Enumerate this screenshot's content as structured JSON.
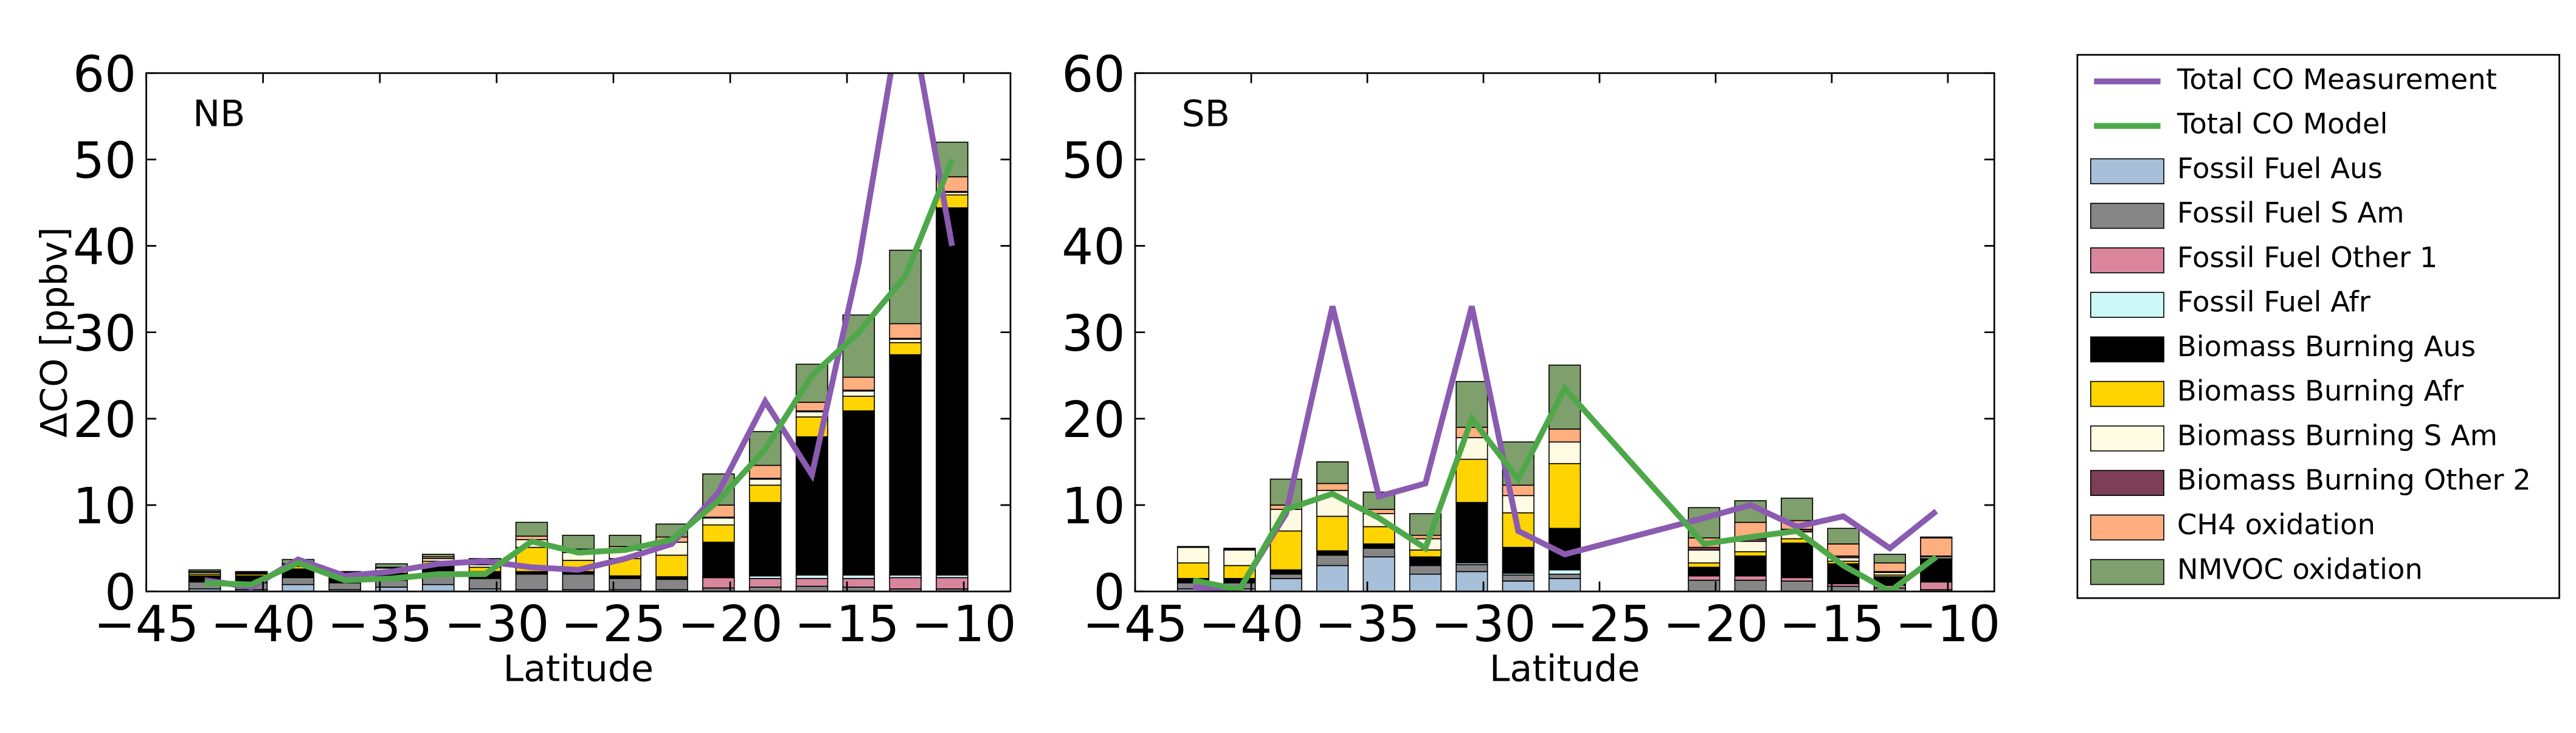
{
  "chart_data": [
    {
      "type": "bar",
      "annotation": "NB",
      "ylabel": "ΔCO [ppbv]",
      "xlabel": "Latitude",
      "x": [
        -42.5,
        -40.5,
        -38.5,
        -36.5,
        -34.5,
        -32.5,
        -30.5,
        -28.5,
        -26.5,
        -24.5,
        -22.5,
        -20.5,
        -18.5,
        -16.5,
        -14.5,
        -12.5,
        -10.5
      ],
      "xlim": [
        -45,
        -8
      ],
      "ylim": [
        0,
        60
      ],
      "xticks": [
        {
          "value": -45,
          "label": "−45"
        },
        {
          "value": -40,
          "label": "−40"
        },
        {
          "value": -35,
          "label": "−35"
        },
        {
          "value": -30,
          "label": "−30"
        },
        {
          "value": -25,
          "label": "−25"
        },
        {
          "value": -20,
          "label": "−20"
        },
        {
          "value": -15,
          "label": "−15"
        },
        {
          "value": -10,
          "label": "−10"
        }
      ],
      "yticks": [
        0,
        10,
        20,
        30,
        40,
        50,
        60
      ],
      "series": [
        {
          "name": "Total CO Measurement",
          "type": "line",
          "color": "#8a5bb0",
          "values": [
            1.3,
            0.5,
            3.7,
            1.8,
            2.3,
            3.2,
            3.5,
            2.8,
            2.5,
            3.8,
            5.5,
            11.5,
            22,
            13.5,
            38,
            70,
            40
          ]
        },
        {
          "name": "Total CO Model",
          "type": "line",
          "color": "#4ea84a",
          "values": [
            1.0,
            0.8,
            3.3,
            1.3,
            1.5,
            2.0,
            2.0,
            5.8,
            4.5,
            4.8,
            6.0,
            10.5,
            16.5,
            25,
            30,
            36.5,
            50
          ]
        },
        {
          "name": "Fossil Fuel Aus",
          "type": "bar",
          "color": "#a7bfd9",
          "values": [
            0.3,
            0.2,
            0.8,
            0.2,
            0.5,
            0.8,
            0.3,
            0.2,
            0.2,
            0.2,
            0.2,
            0,
            0,
            0,
            0,
            0,
            0
          ]
        },
        {
          "name": "Fossil Fuel S Am",
          "type": "bar",
          "color": "#868686",
          "values": [
            0.8,
            0.8,
            0.8,
            0.8,
            0.8,
            1,
            1.2,
            1.8,
            1.8,
            1.3,
            1.2,
            0.4,
            0.5,
            0.6,
            0.5,
            0.3,
            0.3
          ]
        },
        {
          "name": "Fossil Fuel Other 1",
          "type": "bar",
          "color": "#d9869c",
          "values": [
            0,
            0,
            0,
            0,
            0,
            0,
            0,
            0,
            0,
            0,
            0,
            1.2,
            1,
            0.9,
            1,
            1.3,
            1.3
          ]
        },
        {
          "name": "Fossil Fuel Afr",
          "type": "bar",
          "color": "#ccf8f8",
          "values": [
            0,
            0,
            0,
            0,
            0,
            0,
            0,
            0,
            0,
            0,
            0,
            0.1,
            0.3,
            0.4,
            0.4,
            0.3,
            0.3
          ]
        },
        {
          "name": "Biomass Burning Aus",
          "type": "bar",
          "color": "#000000",
          "values": [
            0.7,
            0.8,
            1.0,
            0.8,
            0.8,
            1.2,
            0.8,
            0.3,
            0.3,
            0.3,
            0.3,
            4,
            8.5,
            16,
            19,
            25.5,
            42.5
          ]
        },
        {
          "name": "Biomass Burning Afr",
          "type": "bar",
          "color": "#ffd400",
          "values": [
            0.2,
            0.2,
            0.3,
            0.2,
            0.3,
            0.5,
            0.5,
            2.8,
            1.3,
            2,
            2.5,
            2,
            2,
            2.3,
            1.7,
            1.4,
            1.5
          ]
        },
        {
          "name": "Biomass Burning S Am",
          "type": "bar",
          "color": "#fffbe3",
          "values": [
            0.2,
            0.1,
            0.2,
            0.1,
            0.3,
            0.3,
            0.3,
            0.9,
            0.9,
            1,
            1.5,
            0.8,
            0.7,
            0.6,
            0.6,
            0.4,
            0.3
          ]
        },
        {
          "name": "Biomass Burning Other 2",
          "type": "bar",
          "color": "#7c3f56",
          "values": [
            0,
            0,
            0,
            0,
            0,
            0,
            0,
            0,
            0,
            0,
            0,
            0.1,
            0.1,
            0.1,
            0.1,
            0.1,
            0.1
          ]
        },
        {
          "name": "CH4 oxidation",
          "type": "bar",
          "color": "#ffae80",
          "values": [
            0.1,
            0.1,
            0.1,
            0.1,
            0.1,
            0.2,
            0.2,
            0.4,
            0.4,
            0.4,
            0.6,
            1.4,
            1.5,
            1,
            1.5,
            1.7,
            1.7
          ]
        },
        {
          "name": "NMVOC oxidation",
          "type": "bar",
          "color": "#7f9f6c",
          "values": [
            0.2,
            0.1,
            0.5,
            0.1,
            0.4,
            0.3,
            0.5,
            1.6,
            1.6,
            1.3,
            1.5,
            3.6,
            3.9,
            4.4,
            7.2,
            8.5,
            4.0
          ]
        }
      ]
    },
    {
      "type": "bar",
      "annotation": "SB",
      "xlabel": "Latitude",
      "x": [
        -42.5,
        -40.5,
        -38.5,
        -36.5,
        -34.5,
        -32.5,
        -30.5,
        -28.5,
        -26.5,
        -20.5,
        -18.5,
        -16.5,
        -14.5,
        -12.5,
        -10.5
      ],
      "xlim": [
        -45,
        -8
      ],
      "ylim": [
        0,
        60
      ],
      "xticks": [
        {
          "value": -45,
          "label": "−45"
        },
        {
          "value": -40,
          "label": "−40"
        },
        {
          "value": -35,
          "label": "−35"
        },
        {
          "value": -30,
          "label": "−30"
        },
        {
          "value": -25,
          "label": "−25"
        },
        {
          "value": -20,
          "label": "−20"
        },
        {
          "value": -15,
          "label": "−15"
        },
        {
          "value": -10,
          "label": "−10"
        }
      ],
      "yticks": [
        0,
        10,
        20,
        30,
        40,
        50,
        60
      ],
      "series": [
        {
          "type": "line",
          "color": "#8a5bb0",
          "values": [
            0.5,
            0.3,
            9,
            33,
            11,
            12.5,
            33,
            7,
            4.3,
            8.5,
            10,
            7.5,
            8.7,
            5,
            9.3
          ]
        },
        {
          "type": "line",
          "color": "#4ea84a",
          "values": [
            1.3,
            0.2,
            9.5,
            11.3,
            8.5,
            5,
            20,
            13,
            23.5,
            5.5,
            6.3,
            7,
            3,
            0,
            4
          ]
        },
        {
          "type": "bar",
          "color": "#a7bfd9",
          "values": [
            0.3,
            0.3,
            1.5,
            3,
            4,
            2,
            2.3,
            1.2,
            1.5,
            0,
            0,
            0,
            0,
            0,
            0
          ]
        },
        {
          "type": "bar",
          "color": "#868686",
          "values": [
            0.7,
            0.7,
            0.5,
            1.2,
            1,
            1,
            0.8,
            0.7,
            0.5,
            1.3,
            1.3,
            1.2,
            0.6,
            0.4,
            0.2
          ]
        },
        {
          "type": "bar",
          "color": "#d9869c",
          "values": [
            0,
            0,
            0,
            0,
            0,
            0,
            0,
            0,
            0,
            0.5,
            0.5,
            0.4,
            0.3,
            0.3,
            0.9
          ]
        },
        {
          "type": "bar",
          "color": "#ccf8f8",
          "values": [
            0,
            0,
            0,
            0,
            0,
            0,
            0.2,
            0.2,
            0.5,
            0,
            0,
            0,
            0,
            0,
            0
          ]
        },
        {
          "type": "bar",
          "color": "#000000",
          "values": [
            0.5,
            0.5,
            0.5,
            0.5,
            0.5,
            1,
            7,
            3,
            4.8,
            1,
            2.3,
            4,
            2.3,
            1,
            2.6
          ]
        },
        {
          "type": "bar",
          "color": "#ffd400",
          "values": [
            1.8,
            1.5,
            4.5,
            4,
            2,
            0.8,
            5,
            4,
            7.5,
            0.5,
            0.5,
            0.5,
            0.3,
            0.2,
            0.1
          ]
        },
        {
          "type": "bar",
          "color": "#fffbe3",
          "values": [
            1.8,
            1.8,
            2.5,
            3,
            1.5,
            1.3,
            2.5,
            2,
            2.5,
            1.5,
            1.2,
            0.8,
            0.4,
            0.3,
            0.2
          ]
        },
        {
          "type": "bar",
          "color": "#7c3f56",
          "values": [
            0,
            0,
            0,
            0,
            0,
            0,
            0,
            0,
            0,
            0.3,
            0.3,
            0.3,
            0.2,
            0.1,
            0.1
          ]
        },
        {
          "type": "bar",
          "color": "#ffae80",
          "values": [
            0.1,
            0.1,
            0.5,
            0.8,
            0.5,
            0.4,
            1.2,
            1.2,
            1.5,
            1.1,
            1.9,
            1,
            1.4,
            1,
            2.1
          ]
        },
        {
          "type": "bar",
          "color": "#7f9f6c",
          "values": [
            0,
            0.1,
            3,
            2.5,
            2,
            2.5,
            5.3,
            5,
            7.4,
            3.5,
            2.5,
            2.6,
            1.8,
            1,
            0.1
          ]
        }
      ]
    }
  ]
}
